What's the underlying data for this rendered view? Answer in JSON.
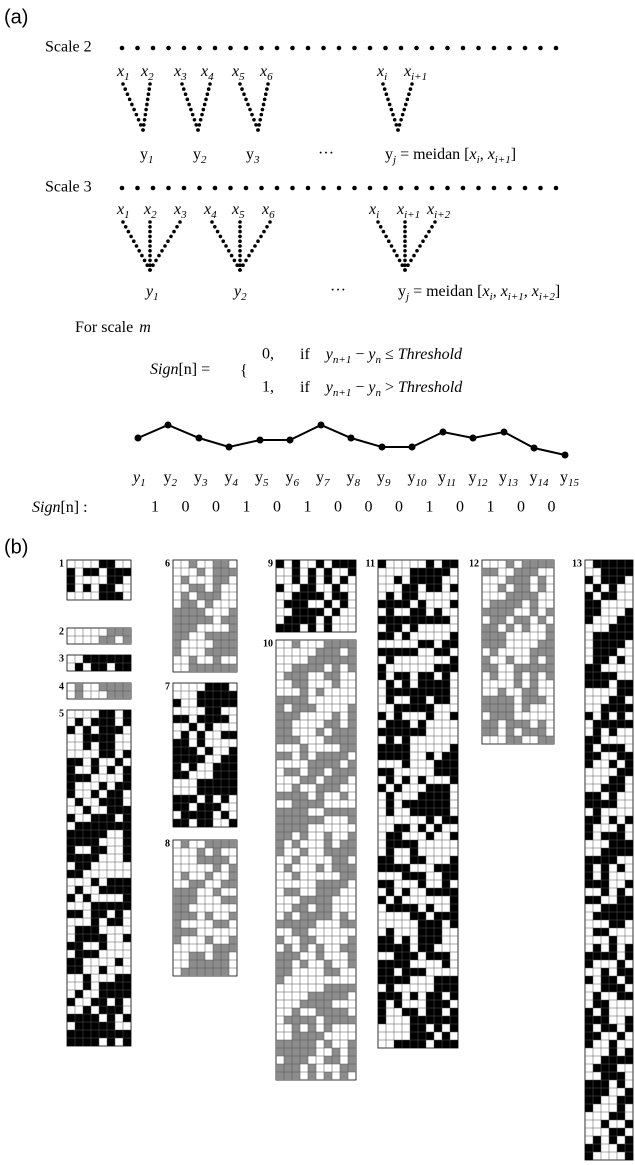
{
  "panel_a": {
    "label": "(a)",
    "scale2": {
      "label": "Scale 2",
      "x_labels": [
        {
          "base": "x",
          "sub": "1"
        },
        {
          "base": "x",
          "sub": "2"
        },
        {
          "base": "x",
          "sub": "3"
        },
        {
          "base": "x",
          "sub": "4"
        },
        {
          "base": "x",
          "sub": "5"
        },
        {
          "base": "x",
          "sub": "6"
        },
        {
          "base": "x",
          "sub": "i"
        },
        {
          "base": "x",
          "sub": "i+1"
        }
      ],
      "y_labels": [
        {
          "base": "y",
          "sub": "1"
        },
        {
          "base": "y",
          "sub": "2"
        },
        {
          "base": "y",
          "sub": "3"
        }
      ],
      "ellipsis": "…",
      "result": [
        {
          "base": "y",
          "sub": "j"
        },
        " = meidan [",
        {
          "base": "x",
          "sub": "i"
        },
        ", ",
        {
          "base": "x",
          "sub": "i+1"
        },
        "]"
      ]
    },
    "scale3": {
      "label": "Scale 3",
      "x_labels": [
        {
          "base": "x",
          "sub": "1"
        },
        {
          "base": "x",
          "sub": "2"
        },
        {
          "base": "x",
          "sub": "3"
        },
        {
          "base": "x",
          "sub": "4"
        },
        {
          "base": "x",
          "sub": "5"
        },
        {
          "base": "x",
          "sub": "6"
        },
        {
          "base": "x",
          "sub": "i"
        },
        {
          "base": "x",
          "sub": "i+1"
        },
        {
          "base": "x",
          "sub": "i+2"
        }
      ],
      "y_labels": [
        {
          "base": "y",
          "sub": "1"
        },
        {
          "base": "y",
          "sub": "2"
        }
      ],
      "ellipsis": "…",
      "result": [
        {
          "base": "y",
          "sub": "j"
        },
        " = meidan [",
        {
          "base": "x",
          "sub": "i"
        },
        ", ",
        {
          "base": "x",
          "sub": "i+1"
        },
        ", ",
        {
          "base": "x",
          "sub": "i+2"
        },
        "]"
      ]
    },
    "for_scale": {
      "text": "For scale",
      "var": "m"
    },
    "rule": {
      "func": "Sign",
      "arg": "[n] =",
      "cases": [
        {
          "value": "0,",
          "if": "if",
          "a": {
            "base": "y",
            "sub": "n+1"
          },
          "minus": "−",
          "b": {
            "base": "y",
            "sub": "n"
          },
          "op": "≤",
          "rhs": "Threshold"
        },
        {
          "value": "1,",
          "if": "if",
          "a": {
            "base": "y",
            "sub": "n+1"
          },
          "minus": "−",
          "b": {
            "base": "y",
            "sub": "n"
          },
          "op": ">",
          "rhs": "Threshold"
        }
      ]
    },
    "series_labels": [
      {
        "base": "y",
        "sub": "1"
      },
      {
        "base": "y",
        "sub": "2"
      },
      {
        "base": "y",
        "sub": "3"
      },
      {
        "base": "y",
        "sub": "4"
      },
      {
        "base": "y",
        "sub": "5"
      },
      {
        "base": "y",
        "sub": "6"
      },
      {
        "base": "y",
        "sub": "7"
      },
      {
        "base": "y",
        "sub": "8"
      },
      {
        "base": "y",
        "sub": "9"
      },
      {
        "base": "y",
        "sub": "10"
      },
      {
        "base": "y",
        "sub": "11"
      },
      {
        "base": "y",
        "sub": "12"
      },
      {
        "base": "y",
        "sub": "13"
      },
      {
        "base": "y",
        "sub": "14"
      },
      {
        "base": "y",
        "sub": "15"
      }
    ],
    "sign_label": {
      "func": "Sign",
      "arg": "[n] :"
    },
    "sign_values": [
      1,
      0,
      0,
      1,
      0,
      1,
      0,
      0,
      0,
      1,
      0,
      1,
      0,
      0
    ]
  },
  "panel_b": {
    "label": "(b)",
    "panels": [
      "1",
      "2",
      "3",
      "4",
      "5",
      "6",
      "7",
      "8",
      "9",
      "10",
      "11",
      "12",
      "13"
    ]
  }
}
